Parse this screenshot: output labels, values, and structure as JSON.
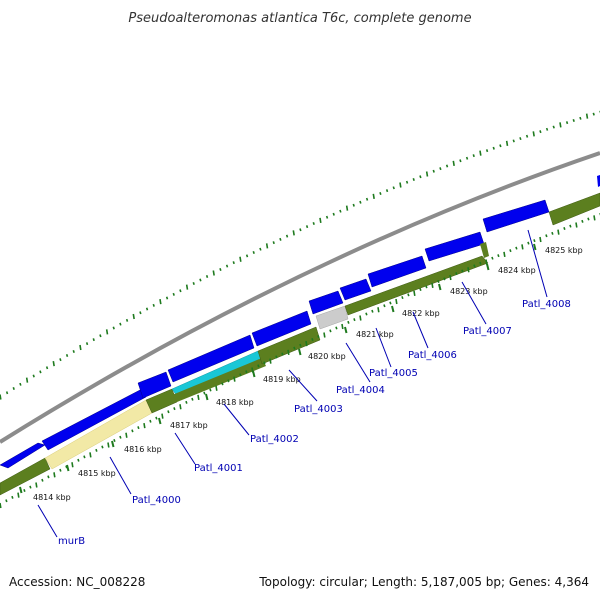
{
  "title": "Pseudoalteromonas atlantica T6c, complete genome",
  "footer": {
    "accession": "Accession: NC_008228",
    "summary": "Topology: circular; Length: 5,187,005 bp; Genes: 4,364"
  },
  "colors": {
    "backbone": "#8c8c8c",
    "forward_cds": "#0000ee",
    "reverse_track": "#5c7f1f",
    "highlight_yellow": "#f2e9a6",
    "highlight_cyan": "#19c7d6",
    "highlight_gray": "#cccccc",
    "gc_ticks": "#1e7a1e",
    "label": "#0000b3"
  },
  "scale_ticks": [
    {
      "label": "4814 kbp"
    },
    {
      "label": "4815 kbp"
    },
    {
      "label": "4816 kbp"
    },
    {
      "label": "4817 kbp"
    },
    {
      "label": "4818 kbp"
    },
    {
      "label": "4819 kbp"
    },
    {
      "label": "4820 kbp"
    },
    {
      "label": "4821 kbp"
    },
    {
      "label": "4822 kbp"
    },
    {
      "label": "4823 kbp"
    },
    {
      "label": "4824 kbp"
    },
    {
      "label": "4825 kbp"
    }
  ],
  "gene_labels": [
    {
      "label": "murB"
    },
    {
      "label": "Patl_4000"
    },
    {
      "label": "Patl_4001"
    },
    {
      "label": "Patl_4002"
    },
    {
      "label": "Patl_4003"
    },
    {
      "label": "Patl_4004"
    },
    {
      "label": "Patl_4005"
    },
    {
      "label": "Patl_4006"
    },
    {
      "label": "Patl_4007"
    },
    {
      "label": "Patl_4008"
    }
  ]
}
